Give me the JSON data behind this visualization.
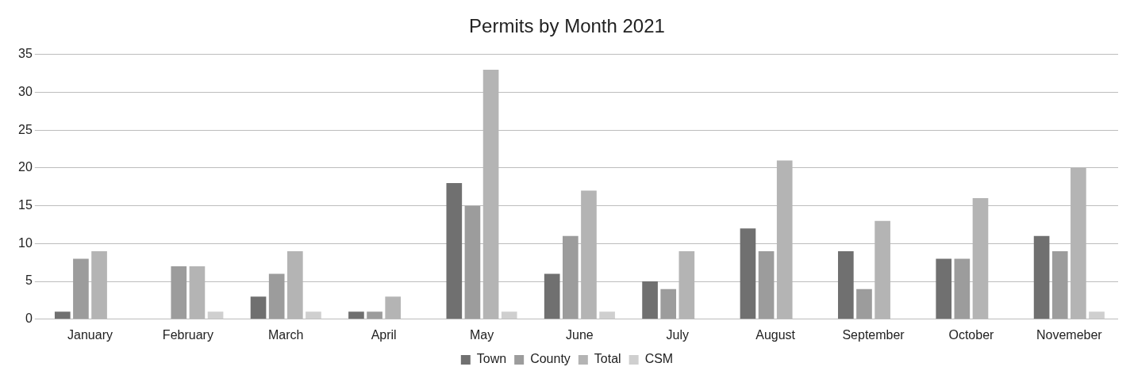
{
  "chart_data": {
    "type": "bar",
    "title": "Permits by Month 2021",
    "categories": [
      "January",
      "February",
      "March",
      "April",
      "May",
      "June",
      "July",
      "August",
      "September",
      "October",
      "Novemeber"
    ],
    "series": [
      {
        "name": "Town",
        "color": "#707070",
        "values": [
          1,
          0,
          3,
          1,
          18,
          6,
          5,
          12,
          9,
          8,
          11
        ]
      },
      {
        "name": "County",
        "color": "#9c9c9c",
        "values": [
          8,
          7,
          6,
          1,
          15,
          11,
          4,
          9,
          4,
          8,
          9
        ]
      },
      {
        "name": "Total",
        "color": "#b4b4b4",
        "values": [
          9,
          7,
          9,
          3,
          33,
          17,
          9,
          21,
          13,
          16,
          20
        ]
      },
      {
        "name": "CSM",
        "color": "#cfcfcf",
        "values": [
          0,
          1,
          1,
          0,
          1,
          1,
          0,
          0,
          0,
          0,
          1
        ]
      }
    ],
    "ylim": [
      0,
      35
    ],
    "yticks": [
      0,
      5,
      10,
      15,
      20,
      25,
      30,
      35
    ],
    "grid": "y",
    "legend": "bottom"
  }
}
